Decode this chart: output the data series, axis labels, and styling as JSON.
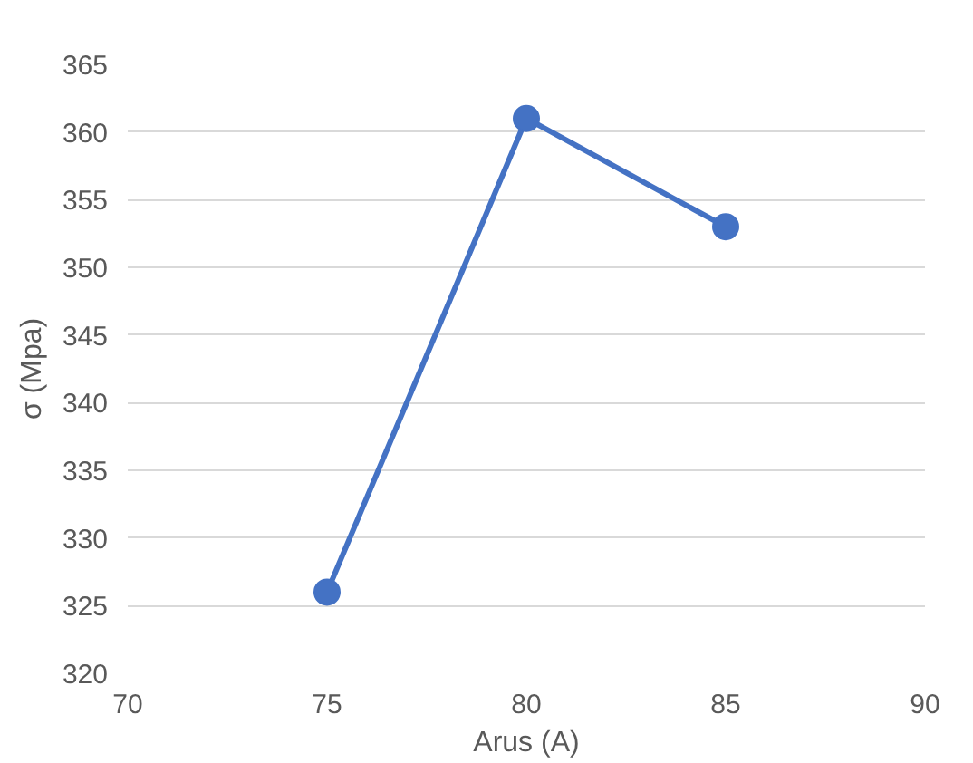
{
  "chart_data": {
    "type": "line",
    "xlabel": "Arus (A)",
    "ylabel": "σ (Mpa)",
    "x": [
      75,
      80,
      85
    ],
    "series": [
      {
        "color": "#4472c4",
        "values": [
          326,
          361,
          353
        ]
      }
    ],
    "xlim": [
      70,
      90
    ],
    "xticks": [
      70,
      75,
      80,
      85,
      90
    ],
    "ylim": [
      320,
      365
    ],
    "yticks": [
      320,
      325,
      330,
      335,
      340,
      345,
      350,
      355,
      360,
      365
    ],
    "grid": "y",
    "marker": "circle",
    "line_style": "solid"
  }
}
